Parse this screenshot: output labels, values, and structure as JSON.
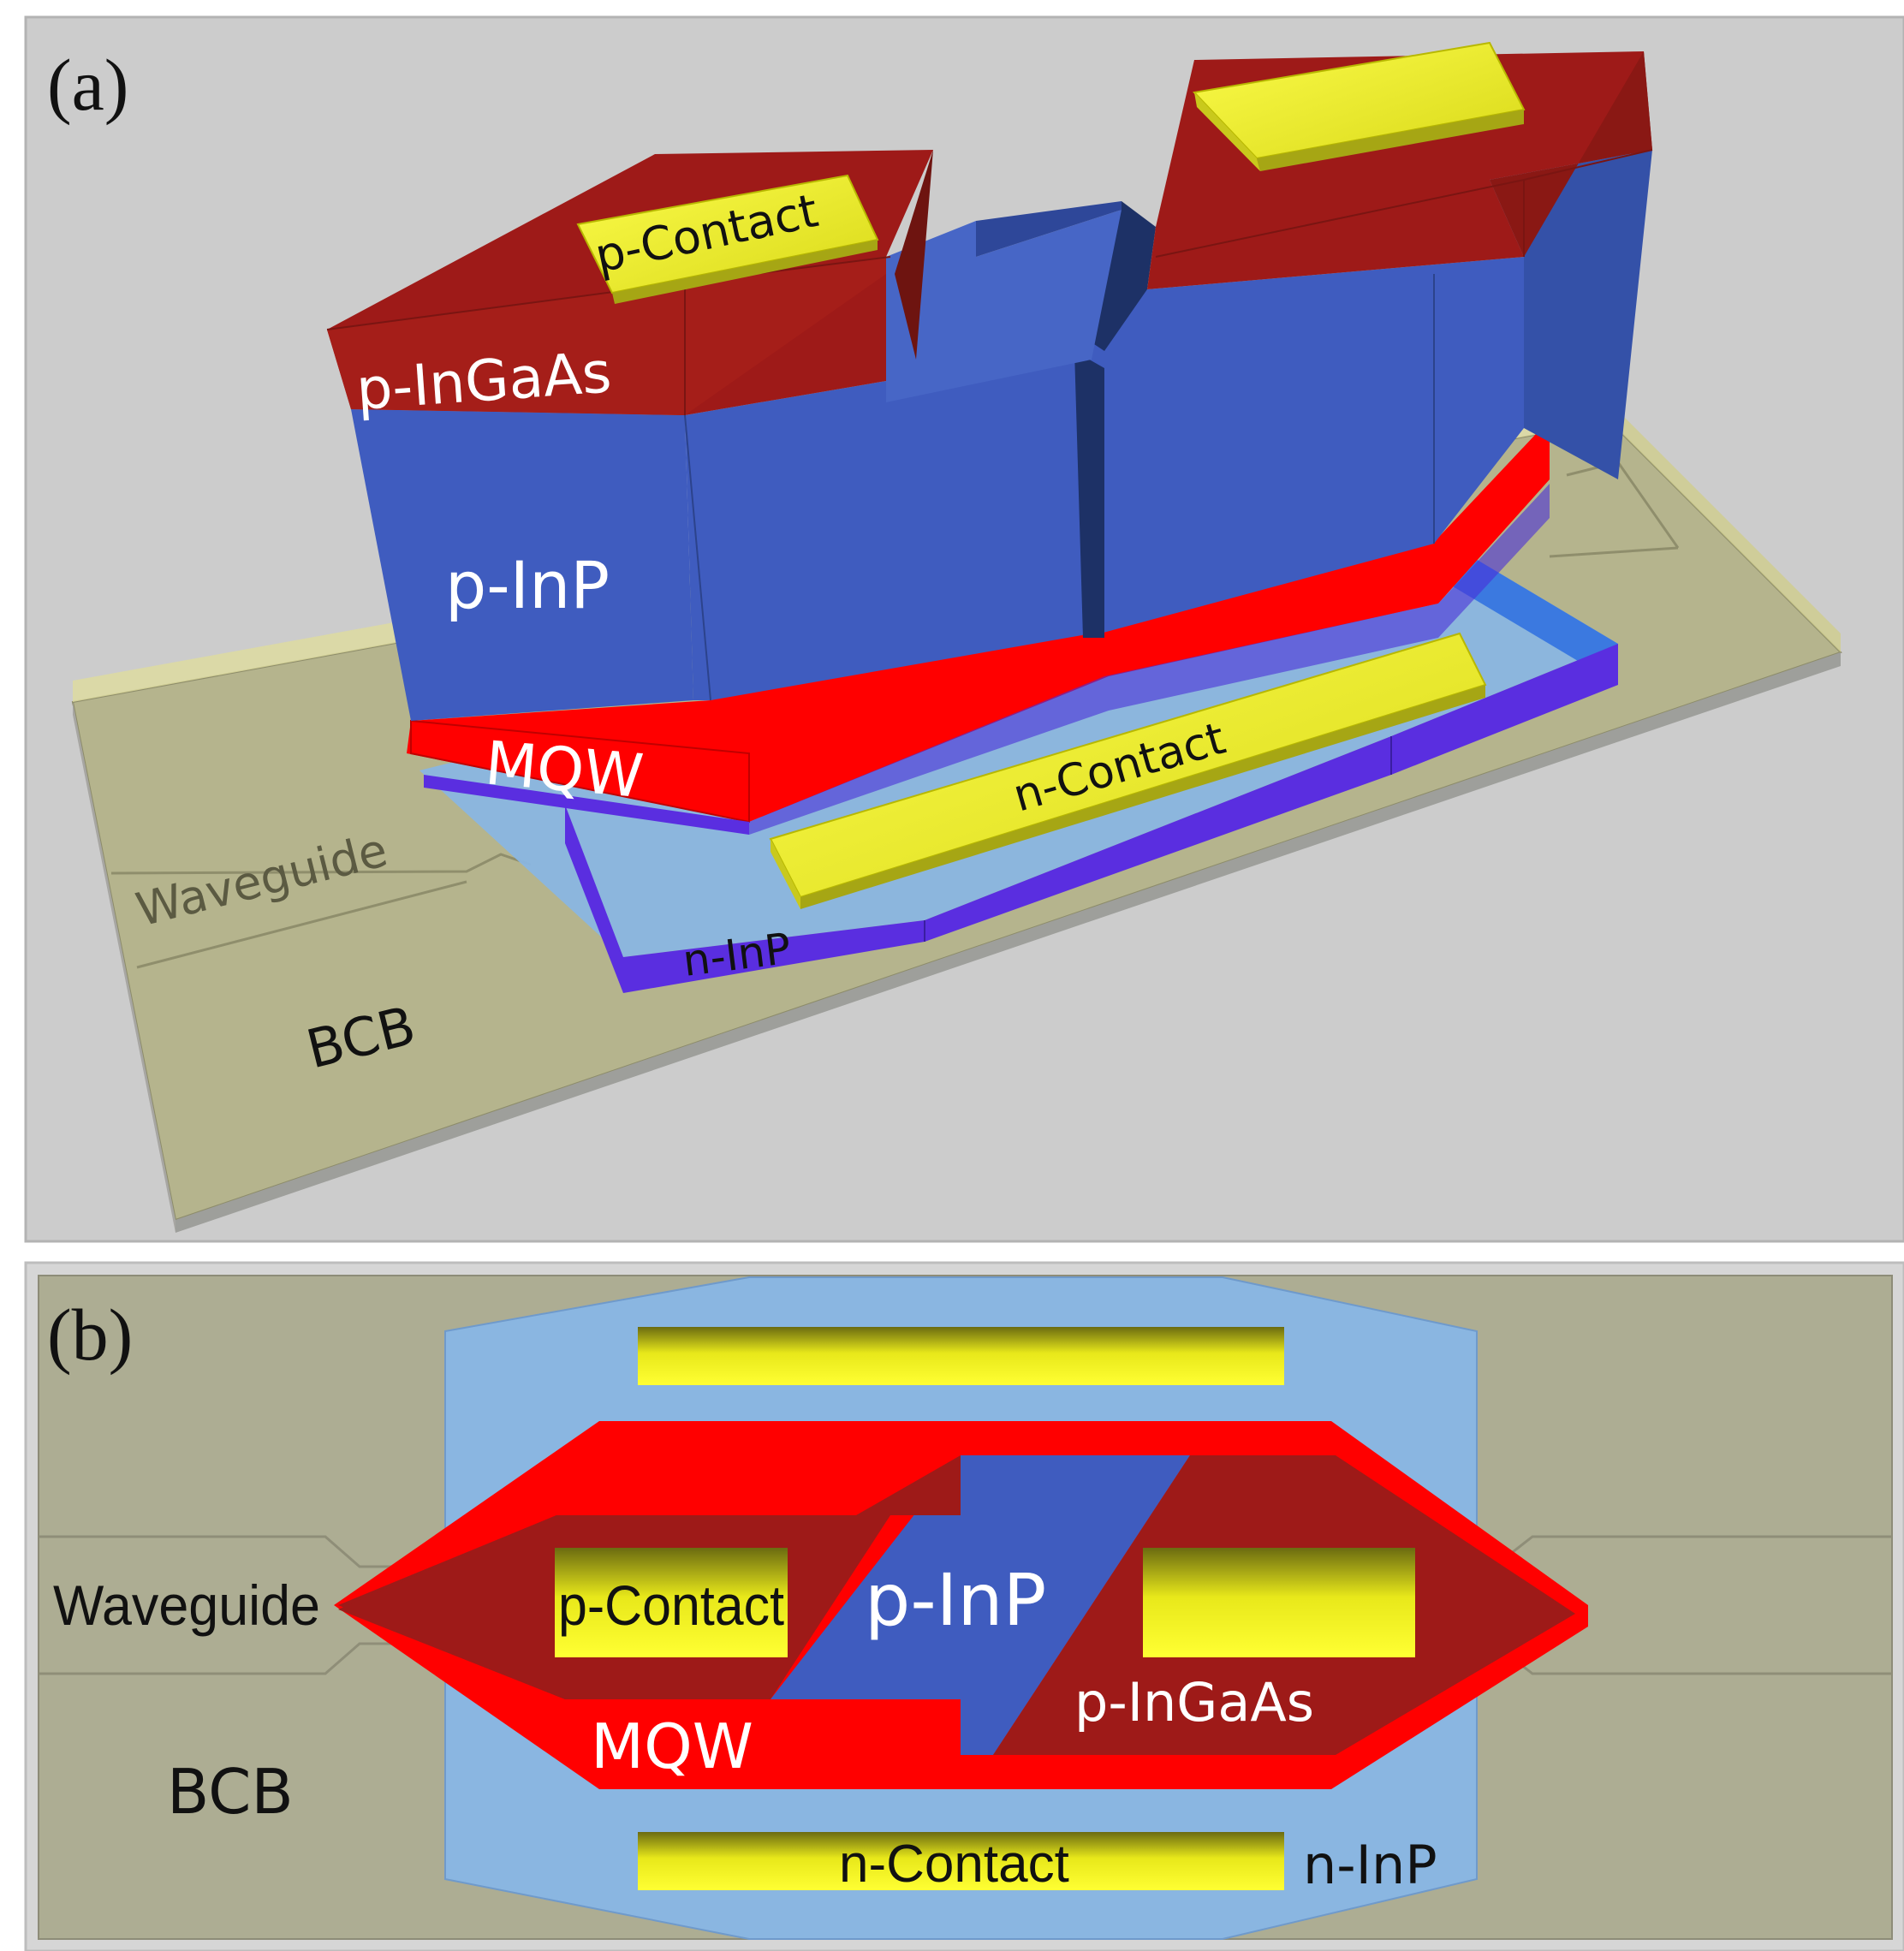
{
  "panel_a": {
    "label": "(a)",
    "layers": {
      "p_contact": "p-Contact",
      "p_ingaas": "p-InGaAs",
      "p_inp": "p-InP",
      "mqw": "MQW",
      "n_contact": "n-Contact",
      "n_inp": "n-InP",
      "waveguide": "Waveguide",
      "bcb": "BCB"
    }
  },
  "panel_b": {
    "label": "(b)",
    "layers": {
      "waveguide": "Waveguide",
      "p_contact": "p-Contact",
      "p_inp": "p-InP",
      "p_ingaas": "p-InGaAs",
      "mqw": "MQW",
      "bcb": "BCB",
      "n_contact": "n-Contact",
      "n_inp": "n-InP"
    }
  },
  "colors": {
    "background_a": "#cccccc",
    "bcb": "#adad93",
    "bcb_3d": "#b5b48d",
    "n_inp_top": "#8ab6e1",
    "n_inp_edge": "#5a2ee0",
    "p_inp": "#3f5cbf",
    "p_ingaas": "#9e1a18",
    "mqw": "#ff0000",
    "contact": "#eaea1a"
  }
}
